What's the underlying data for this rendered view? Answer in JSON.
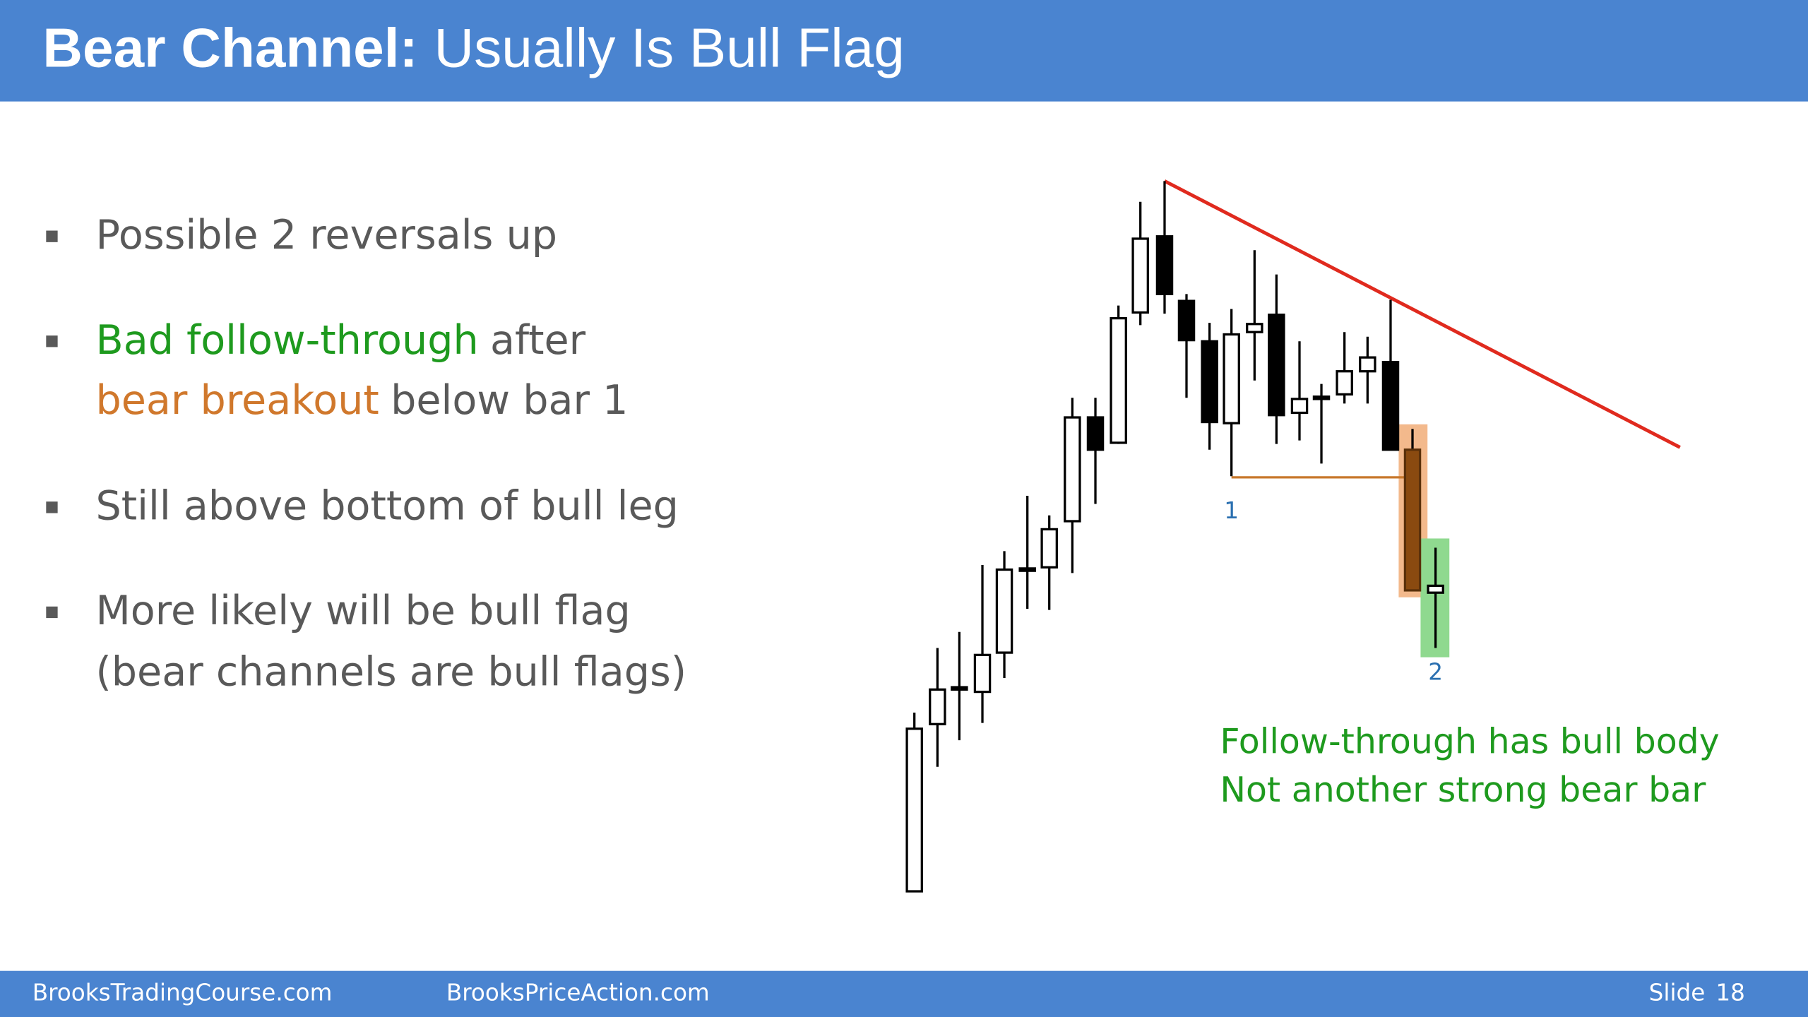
{
  "header": {
    "title_bold": "Bear Channel:",
    "title_rest": "Usually Is Bull Flag"
  },
  "bullets": [
    [
      [
        "Possible 2 reversals up"
      ]
    ],
    [
      [
        "Bad follow-through",
        "after"
      ],
      [
        "bear breakout",
        "below bar 1"
      ]
    ],
    [
      [
        "Still above bottom of bull leg"
      ]
    ],
    [
      [
        "More likely will be bull flag"
      ],
      [
        "(bear channels are bull flags)"
      ]
    ]
  ],
  "diagram": {
    "label_bar_1": "1",
    "label_bar_2": "2",
    "annotation": [
      "Follow-through has bull body",
      "Not another strong bear bar"
    ]
  },
  "footer": {
    "left": "BrooksTradingCourse.com",
    "center": "BrooksPriceAction.com",
    "slide_label": "Slide",
    "slide_number": "18"
  }
}
